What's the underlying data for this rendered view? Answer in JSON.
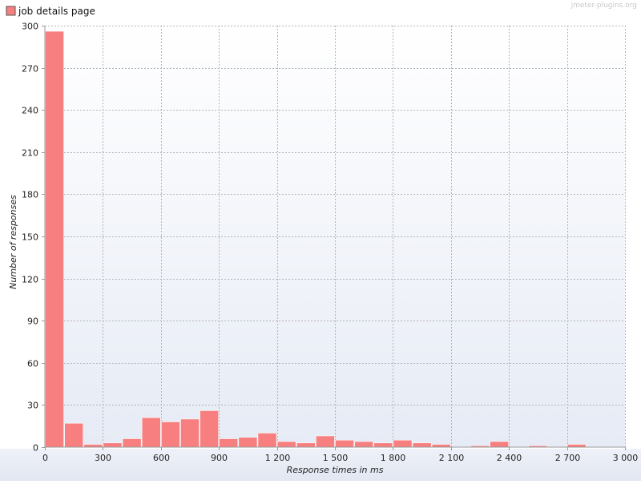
{
  "watermark": "jmeter-plugins.org",
  "chart_data": {
    "type": "bar",
    "title": "",
    "xlabel": "Response times in ms",
    "ylabel": "Number of responses",
    "xlim": [
      0,
      3000
    ],
    "ylim": [
      0,
      300
    ],
    "grid": true,
    "legend_position": "top-left",
    "bin_width": 100,
    "x_ticks": [
      "0",
      "300",
      "600",
      "900",
      "1 200",
      "1 500",
      "1 800",
      "2 100",
      "2 400",
      "2 700",
      "3 000"
    ],
    "y_ticks": [
      "0",
      "30",
      "60",
      "90",
      "120",
      "150",
      "180",
      "210",
      "240",
      "270",
      "300"
    ],
    "series": [
      {
        "name": "job details page",
        "color": "#f77f7f",
        "x": [
          0,
          100,
          200,
          300,
          400,
          500,
          600,
          700,
          800,
          900,
          1000,
          1100,
          1200,
          1300,
          1400,
          1500,
          1600,
          1700,
          1800,
          1900,
          2000,
          2100,
          2200,
          2300,
          2400,
          2500,
          2600,
          2700
        ],
        "values": [
          296,
          17,
          2,
          3,
          6,
          21,
          18,
          20,
          26,
          6,
          7,
          10,
          4,
          3,
          8,
          5,
          4,
          3,
          5,
          3,
          2,
          0,
          1,
          4,
          0,
          1,
          0,
          2
        ]
      }
    ]
  }
}
